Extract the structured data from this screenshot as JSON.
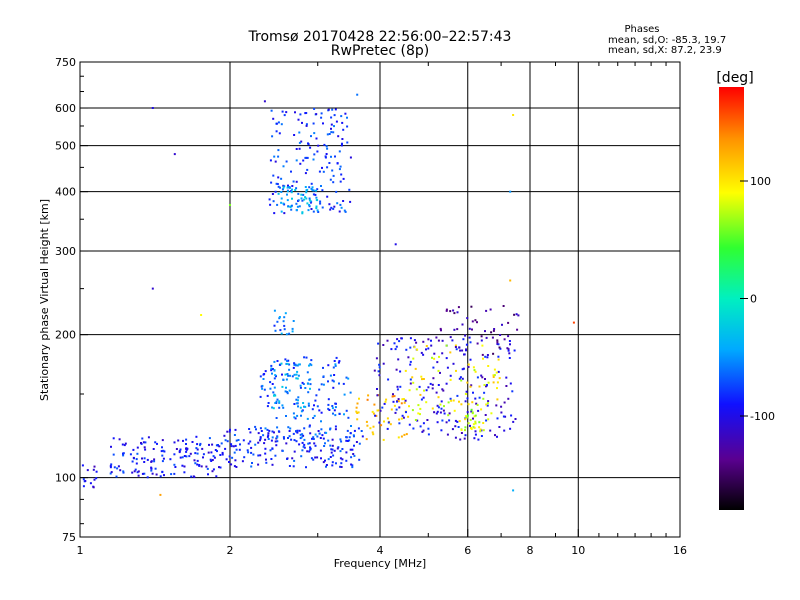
{
  "chart_data": {
    "type": "scatter",
    "title": "Tromsø 20170428 22:56:00–22:57:43",
    "subtitle": "RwPretec (8p)",
    "xlabel": "Frequency [MHz]",
    "ylabel": "Stationary phase Virtual Height [km]",
    "xscale": "log",
    "yscale": "log",
    "xlim": [
      1,
      16
    ],
    "ylim": [
      75,
      750
    ],
    "x_ticks": [
      1,
      2,
      4,
      6,
      8,
      10,
      16
    ],
    "y_ticks": [
      75,
      100,
      200,
      300,
      400,
      500,
      600,
      750
    ],
    "x_grid": [
      2,
      4,
      6,
      8,
      10
    ],
    "y_grid": [
      100,
      200,
      300,
      400,
      500,
      600
    ],
    "grid": true,
    "stats_header": "Phases",
    "stats": [
      "mean, sd,O: -85.3, 19.7",
      "mean, sd,X:  87.2, 23.9"
    ],
    "colorbar": {
      "label": "[deg]",
      "range": [
        -180,
        180
      ],
      "ticks": [
        100,
        0,
        -100
      ]
    },
    "clusters": [
      {
        "f": [
          1.0,
          1.08
        ],
        "h": [
          93,
          108
        ],
        "n": 14,
        "phase": -100
      },
      {
        "f": [
          1.15,
          1.9
        ],
        "h": [
          100,
          122
        ],
        "n": 150,
        "phase": -90
      },
      {
        "f": [
          1.9,
          3.7
        ],
        "h": [
          105,
          128
        ],
        "n": 200,
        "phase": -85
      },
      {
        "f": [
          2.3,
          3.5
        ],
        "h": [
          120,
          180
        ],
        "n": 160,
        "phase": -70
      },
      {
        "f": [
          2.4,
          2.9
        ],
        "h": [
          140,
          175
        ],
        "n": 50,
        "phase": -40
      },
      {
        "f": [
          2.45,
          2.7
        ],
        "h": [
          200,
          225
        ],
        "n": 18,
        "phase": -60
      },
      {
        "f": [
          2.4,
          3.5
        ],
        "h": [
          360,
          600
        ],
        "n": 170,
        "phase": -80
      },
      {
        "f": [
          2.5,
          3.0
        ],
        "h": [
          360,
          410
        ],
        "n": 60,
        "phase": -45
      },
      {
        "f": [
          3.5,
          4.6
        ],
        "h": [
          118,
          150
        ],
        "n": 50,
        "phase": 120
      },
      {
        "f": [
          3.9,
          7.5
        ],
        "h": [
          120,
          200
        ],
        "n": 220,
        "phase": -100
      },
      {
        "f": [
          4.5,
          7.0
        ],
        "h": [
          130,
          190
        ],
        "n": 80,
        "phase": 90
      },
      {
        "f": [
          5.2,
          7.6
        ],
        "h": [
          180,
          230
        ],
        "n": 50,
        "phase": -130
      },
      {
        "f": [
          5.8,
          6.5
        ],
        "h": [
          125,
          140
        ],
        "n": 25,
        "phase": 75
      }
    ],
    "sparse_points": [
      {
        "f": 1.4,
        "h": 600,
        "phase": -100
      },
      {
        "f": 1.55,
        "h": 480,
        "phase": -110
      },
      {
        "f": 1.4,
        "h": 250,
        "phase": -110
      },
      {
        "f": 1.75,
        "h": 220,
        "phase": 90
      },
      {
        "f": 2.35,
        "h": 620,
        "phase": -110
      },
      {
        "f": 3.6,
        "h": 640,
        "phase": -60
      },
      {
        "f": 4.3,
        "h": 310,
        "phase": -100
      },
      {
        "f": 7.4,
        "h": 580,
        "phase": 100
      },
      {
        "f": 7.3,
        "h": 400,
        "phase": -50
      },
      {
        "f": 7.3,
        "h": 260,
        "phase": 120
      },
      {
        "f": 9.8,
        "h": 212,
        "phase": 160
      },
      {
        "f": 7.4,
        "h": 94,
        "phase": -40
      },
      {
        "f": 1.45,
        "h": 92,
        "phase": 130
      },
      {
        "f": 3.35,
        "h": 370,
        "phase": -50
      },
      {
        "f": 3.4,
        "h": 365,
        "phase": -60
      },
      {
        "f": 2.0,
        "h": 375,
        "phase": 60
      }
    ]
  }
}
